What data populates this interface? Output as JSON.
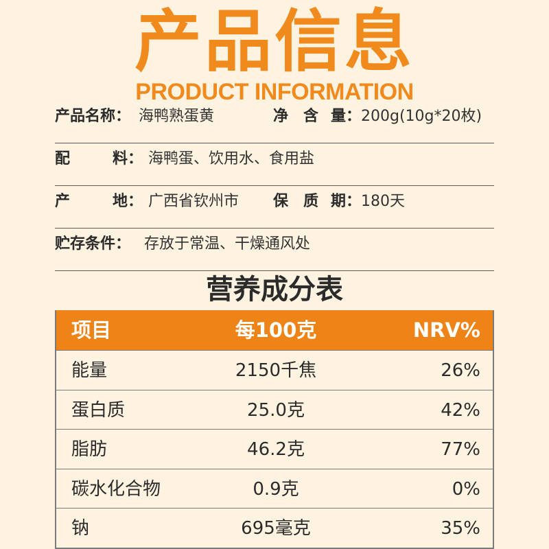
{
  "header": {
    "title_cn": "产品信息",
    "title_en": "PRODUCT INFORMATION"
  },
  "info": {
    "name_label": "产品名称：",
    "name_value": "海鸭熟蛋黄",
    "net_label_a": "净",
    "net_label_b": "含",
    "net_label_c": "量：",
    "net_value": "200g(10g*20枚)",
    "ingredients_label_a": "配",
    "ingredients_label_b": "料：",
    "ingredients_value": "海鸭蛋、饮用水、食用盐",
    "origin_label_a": "产",
    "origin_label_b": "地：",
    "origin_value": "广西省钦州市",
    "shelf_label_a": "保",
    "shelf_label_b": "质",
    "shelf_label_c": "期：",
    "shelf_value": "180天",
    "storage_label": "贮存条件：",
    "storage_value": "存放于常温、干燥通风处"
  },
  "nutrition": {
    "title": "营养成分表",
    "headers": [
      "项目",
      "每100克",
      "NRV%"
    ],
    "rows": [
      [
        "能量",
        "2150千焦",
        "26%"
      ],
      [
        "蛋白质",
        "25.0克",
        "42%"
      ],
      [
        "脂肪",
        "46.2克",
        "77%"
      ],
      [
        "碳水化合物",
        "0.9克",
        "0%"
      ],
      [
        "钠",
        "695毫克",
        "35%"
      ]
    ]
  },
  "colors": {
    "accent": "#f08a1c",
    "header_bg": "#ee8418",
    "background": "#fdf3e0"
  }
}
